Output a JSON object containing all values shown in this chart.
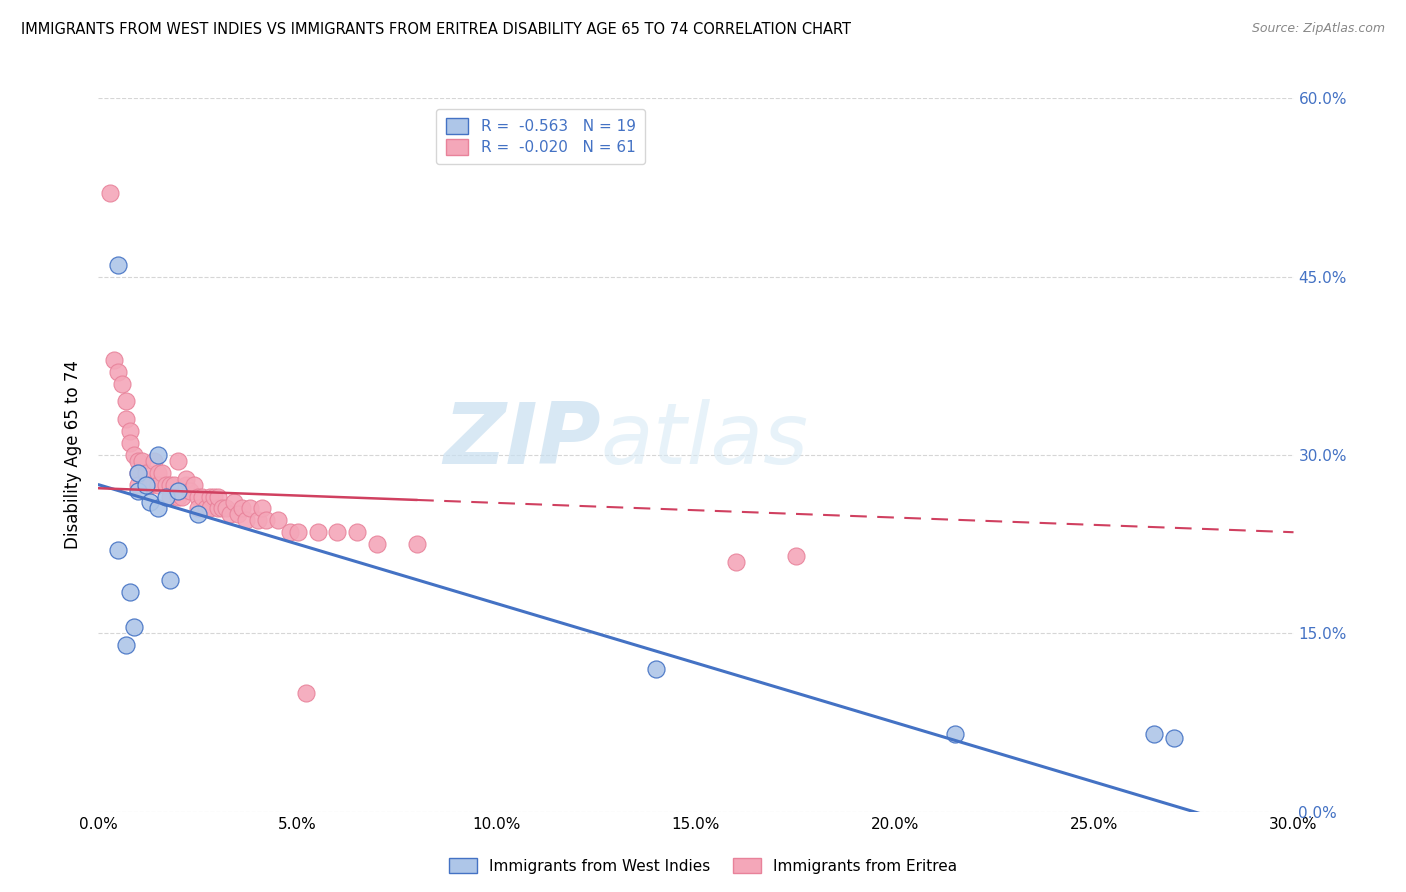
{
  "title": "IMMIGRANTS FROM WEST INDIES VS IMMIGRANTS FROM ERITREA DISABILITY AGE 65 TO 74 CORRELATION CHART",
  "source": "Source: ZipAtlas.com",
  "ylabel": "Disability Age 65 to 74",
  "xlim": [
    0.0,
    0.3
  ],
  "ylim": [
    0.0,
    0.6
  ],
  "xtick_labels": [
    "0.0%",
    "5.0%",
    "10.0%",
    "15.0%",
    "20.0%",
    "25.0%",
    "30.0%"
  ],
  "xtick_values": [
    0.0,
    0.05,
    0.1,
    0.15,
    0.2,
    0.25,
    0.3
  ],
  "ytick_labels": [
    "0.0%",
    "15.0%",
    "30.0%",
    "45.0%",
    "60.0%"
  ],
  "ytick_values": [
    0.0,
    0.15,
    0.3,
    0.45,
    0.6
  ],
  "legend_label1": "R =  -0.563   N = 19",
  "legend_label2": "R =  -0.020   N = 61",
  "color_blue": "#aec6e8",
  "color_pink": "#f4a7b9",
  "color_blue_line": "#4472c4",
  "color_pink_line": "#e8829a",
  "color_right_axis": "#4472c4",
  "watermark_zip": "ZIP",
  "watermark_atlas": "atlas",
  "west_indies_x": [
    0.005,
    0.005,
    0.007,
    0.008,
    0.009,
    0.01,
    0.01,
    0.012,
    0.013,
    0.015,
    0.015,
    0.017,
    0.018,
    0.02,
    0.025,
    0.14,
    0.215,
    0.265,
    0.27
  ],
  "west_indies_y": [
    0.46,
    0.22,
    0.14,
    0.185,
    0.155,
    0.27,
    0.285,
    0.275,
    0.26,
    0.3,
    0.255,
    0.265,
    0.195,
    0.27,
    0.25,
    0.12,
    0.065,
    0.065,
    0.062
  ],
  "eritrea_x": [
    0.003,
    0.004,
    0.005,
    0.006,
    0.007,
    0.007,
    0.008,
    0.008,
    0.009,
    0.01,
    0.01,
    0.01,
    0.011,
    0.012,
    0.013,
    0.014,
    0.015,
    0.015,
    0.016,
    0.017,
    0.018,
    0.018,
    0.019,
    0.02,
    0.02,
    0.021,
    0.022,
    0.022,
    0.023,
    0.024,
    0.025,
    0.025,
    0.026,
    0.027,
    0.028,
    0.028,
    0.029,
    0.03,
    0.03,
    0.031,
    0.032,
    0.033,
    0.034,
    0.035,
    0.036,
    0.037,
    0.038,
    0.04,
    0.041,
    0.042,
    0.045,
    0.048,
    0.05,
    0.052,
    0.055,
    0.06,
    0.065,
    0.07,
    0.08,
    0.16,
    0.175
  ],
  "eritrea_y": [
    0.52,
    0.38,
    0.37,
    0.36,
    0.345,
    0.33,
    0.32,
    0.31,
    0.3,
    0.295,
    0.285,
    0.275,
    0.295,
    0.285,
    0.275,
    0.295,
    0.285,
    0.275,
    0.285,
    0.275,
    0.275,
    0.265,
    0.275,
    0.265,
    0.295,
    0.265,
    0.275,
    0.28,
    0.27,
    0.275,
    0.265,
    0.255,
    0.265,
    0.255,
    0.265,
    0.255,
    0.265,
    0.255,
    0.265,
    0.255,
    0.255,
    0.25,
    0.26,
    0.25,
    0.255,
    0.245,
    0.255,
    0.245,
    0.255,
    0.245,
    0.245,
    0.235,
    0.235,
    0.1,
    0.235,
    0.235,
    0.235,
    0.225,
    0.225,
    0.21,
    0.215
  ],
  "blue_line_x": [
    0.0,
    0.3
  ],
  "blue_line_y": [
    0.275,
    -0.025
  ],
  "pink_line_x": [
    0.0,
    0.3
  ],
  "pink_line_y": [
    0.272,
    0.235
  ]
}
